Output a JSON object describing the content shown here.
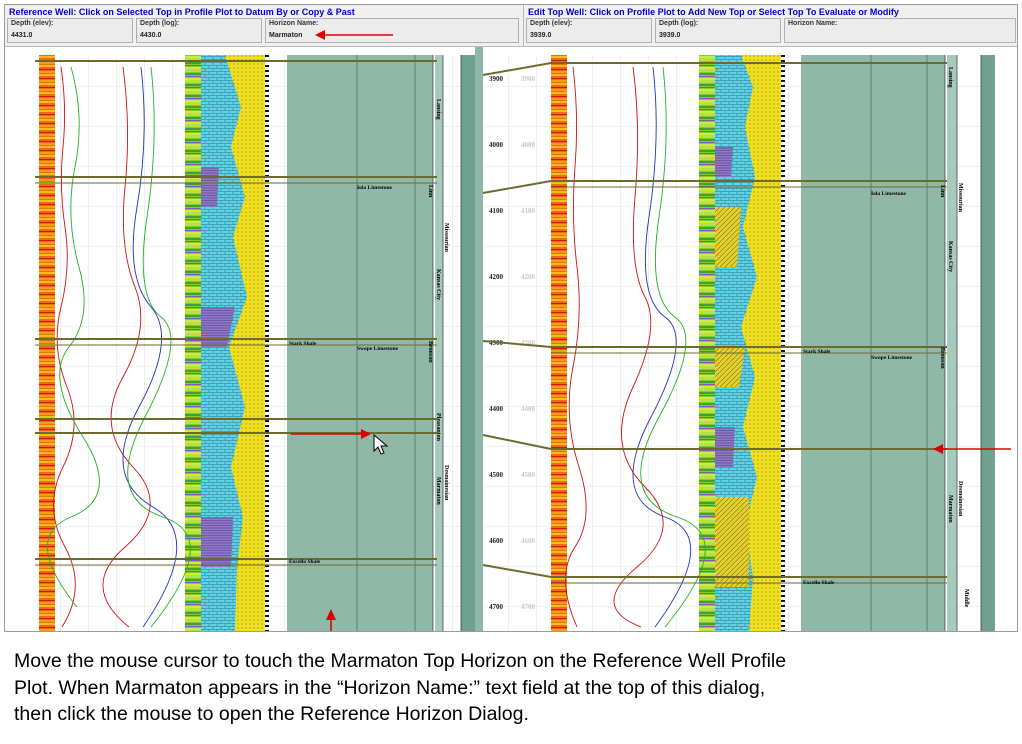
{
  "reference_panel": {
    "title": "Reference Well: Click on Selected Top in Profile Plot to Datum By or Copy & Past",
    "depth_elev": {
      "label": "Depth (elev):",
      "value": "4431.0"
    },
    "depth_log": {
      "label": "Depth (log):",
      "value": "4430.0"
    },
    "horizon_name": {
      "label": "Horizon Name:",
      "value": "Marmaton"
    }
  },
  "edit_panel": {
    "title": "Edit Top Well: Click on Profile Plot to Add New Top or Select Top To Evaluate or Modify",
    "depth_elev": {
      "label": "Depth (elev):",
      "value": "3939.0"
    },
    "depth_log": {
      "label": "Depth (log):",
      "value": "3939.0"
    },
    "horizon_name": {
      "label": "Horizon Name:",
      "value": ""
    }
  },
  "depth_scale": {
    "ticks_dark": [
      "3900",
      "4000",
      "4100",
      "4200",
      "4300",
      "4400",
      "4500",
      "4600",
      "4700"
    ],
    "ticks_light": [
      "3900",
      "4000",
      "4100",
      "4200",
      "4300",
      "4400",
      "4500",
      "4600",
      "4700"
    ]
  },
  "reference_labels": {
    "tops": [
      "Iola Limestone",
      "Stark Shale",
      "Swope Limestone",
      "Excello Shale"
    ],
    "columns": [
      "Lansing",
      "Linn",
      "Missourian",
      "Kansas City",
      "Bronson",
      "Pleasanton",
      "Desmoinesian",
      "Marmaton"
    ]
  },
  "edit_labels": {
    "tops": [
      "Iola Limestone",
      "Stark Shale",
      "Swope Limestone",
      "Excello Shale"
    ],
    "columns": [
      "Lansing",
      "Linn",
      "Missourian",
      "Kansas City",
      "Bronson",
      "Desmoinesian",
      "Marmaton",
      "Middle"
    ]
  },
  "caption": {
    "line1": "Move the mouse cursor to touch the Marmaton Top Horizon  on the Reference Well Profile",
    "line2": "Plot.  When Marmaton appears in the “Horizon Name:” text field at the top of this dialog,",
    "line3": "then click the mouse to open the Reference Horizon Dialog."
  },
  "colors": {
    "accent_blue": "#0000cc",
    "annotation_red": "#dd0000",
    "zone_teal": "#8fb8a8",
    "correlation_line": "#6e6a2e",
    "limestone_cyan": "#5ed4e6",
    "shale_yellow": "#f0e020"
  }
}
